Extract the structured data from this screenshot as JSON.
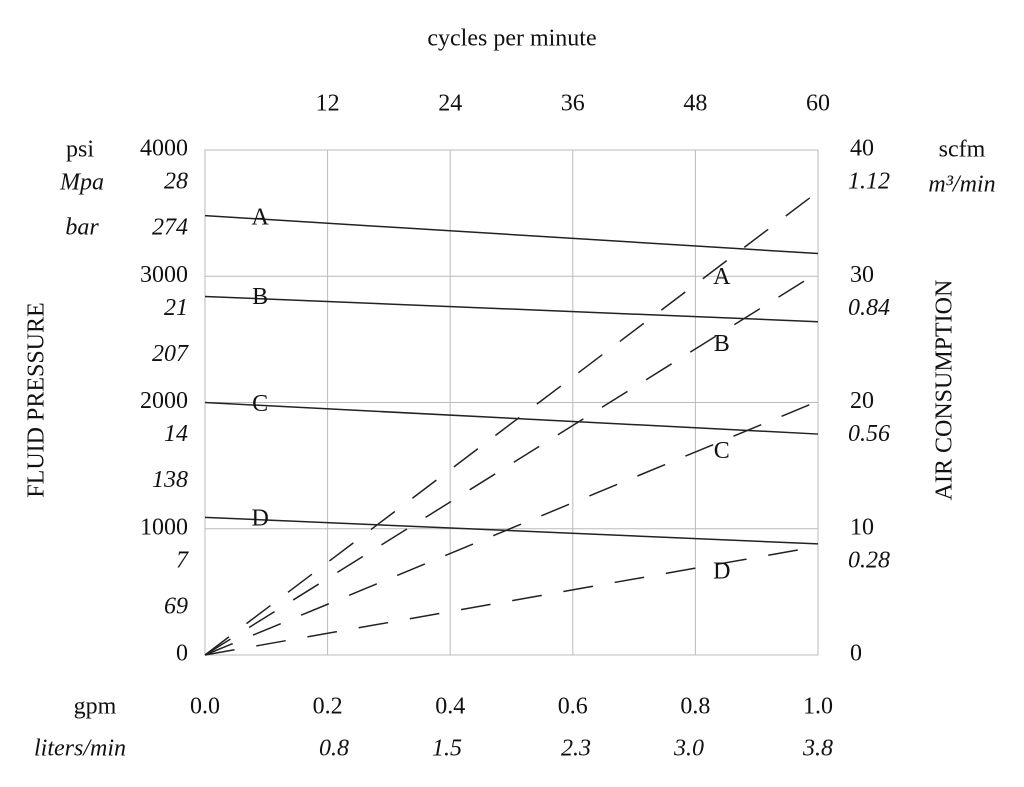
{
  "chart_data": {
    "type": "line",
    "title": "cycles per minute",
    "x_label": "gpm",
    "x2_label": "liters/min",
    "y_label": "FLUID PRESSURE",
    "y2_label": "AIR CONSUMPTION",
    "y_units": [
      "psi",
      "Mpa",
      "bar"
    ],
    "y2_units": [
      "scfm",
      "m³/min"
    ],
    "x": [
      0,
      1
    ],
    "xlim": [
      0,
      1
    ],
    "xticks": [
      {
        "value": 0,
        "label": "0.0"
      },
      0.2,
      0.4,
      0.6,
      0.8,
      {
        "value": 1,
        "label": "1.0"
      }
    ],
    "cycles_lim": [
      0,
      60
    ],
    "cycles_ticks": [
      12,
      24,
      36,
      48,
      60
    ],
    "liters_lim": [
      0,
      3.8
    ],
    "liters_ticks": [
      0.8,
      1.5,
      2.3,
      {
        "value": 3,
        "label": "3.0"
      },
      3.8
    ],
    "ylim": [
      0,
      4000
    ],
    "yticks": [
      0,
      1000,
      2000,
      3000,
      4000
    ],
    "mpa_labels": [
      7,
      14,
      21,
      28
    ],
    "bar_labels": [
      69,
      138,
      207,
      274
    ],
    "y2lim": [
      0,
      40
    ],
    "y2ticks": [
      0,
      10,
      20,
      30,
      40
    ],
    "m3_labels": [
      0.28,
      0.56,
      0.84,
      1.12
    ],
    "grid": true,
    "series": [
      {
        "name": "A",
        "color": "#222222",
        "style": "solid",
        "values": [
          3480,
          3180
        ]
      },
      {
        "name": "B",
        "color": "#222222",
        "style": "solid",
        "values": [
          2840,
          2640
        ]
      },
      {
        "name": "C",
        "color": "#222222",
        "style": "solid",
        "values": [
          2000,
          1750
        ]
      },
      {
        "name": "D",
        "color": "#222222",
        "style": "solid",
        "values": [
          1090,
          880
        ]
      },
      {
        "name": "A",
        "color": "#222222",
        "style": "dashed",
        "axis": "y2",
        "values": [
          0,
          36.7
        ]
      },
      {
        "name": "B",
        "color": "#222222",
        "style": "dashed",
        "axis": "y2",
        "values": [
          0,
          30.3
        ]
      },
      {
        "name": "C",
        "color": "#222222",
        "style": "dashed",
        "axis": "y2",
        "values": [
          0,
          20.1
        ]
      },
      {
        "name": "D",
        "color": "#222222",
        "style": "dashed",
        "axis": "y2",
        "values": [
          0,
          8.6
        ]
      }
    ]
  }
}
